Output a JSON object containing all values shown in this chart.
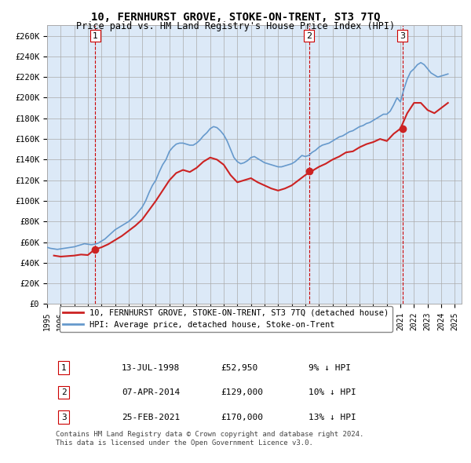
{
  "title": "10, FERNHURST GROVE, STOKE-ON-TRENT, ST3 7TQ",
  "subtitle": "Price paid vs. HM Land Registry's House Price Index (HPI)",
  "background_color": "#dce9f7",
  "plot_bg_color": "#dce9f7",
  "y_ticks": [
    0,
    20000,
    40000,
    60000,
    80000,
    100000,
    120000,
    140000,
    160000,
    180000,
    200000,
    220000,
    240000,
    260000
  ],
  "y_labels": [
    "£0",
    "£20K",
    "£40K",
    "£60K",
    "£80K",
    "£100K",
    "£120K",
    "£140K",
    "£160K",
    "£180K",
    "£200K",
    "£220K",
    "£240K",
    "£260K"
  ],
  "x_start_year": 1995,
  "x_end_year": 2025,
  "hpi_color": "#6699cc",
  "price_color": "#cc2222",
  "marker_color": "#cc2222",
  "vline_color": "#cc0000",
  "purchases": [
    {
      "label": "1",
      "year": 1998.54,
      "price": 52950
    },
    {
      "label": "2",
      "year": 2014.27,
      "price": 129000
    },
    {
      "label": "3",
      "year": 2021.15,
      "price": 170000
    }
  ],
  "legend_line1": "10, FERNHURST GROVE, STOKE-ON-TRENT, ST3 7TQ (detached house)",
  "legend_line2": "HPI: Average price, detached house, Stoke-on-Trent",
  "table_entries": [
    {
      "num": "1",
      "date": "13-JUL-1998",
      "price": "£52,950",
      "pct": "9% ↓ HPI"
    },
    {
      "num": "2",
      "date": "07-APR-2014",
      "price": "£129,000",
      "pct": "10% ↓ HPI"
    },
    {
      "num": "3",
      "date": "25-FEB-2021",
      "price": "£170,000",
      "pct": "13% ↓ HPI"
    }
  ],
  "footnote": "Contains HM Land Registry data © Crown copyright and database right 2024.\nThis data is licensed under the Open Government Licence v3.0.",
  "hpi_data_years": [
    1995.0,
    1995.25,
    1995.5,
    1995.75,
    1996.0,
    1996.25,
    1996.5,
    1996.75,
    1997.0,
    1997.25,
    1997.5,
    1997.75,
    1998.0,
    1998.25,
    1998.5,
    1998.75,
    1999.0,
    1999.25,
    1999.5,
    1999.75,
    2000.0,
    2000.25,
    2000.5,
    2000.75,
    2001.0,
    2001.25,
    2001.5,
    2001.75,
    2002.0,
    2002.25,
    2002.5,
    2002.75,
    2003.0,
    2003.25,
    2003.5,
    2003.75,
    2004.0,
    2004.25,
    2004.5,
    2004.75,
    2005.0,
    2005.25,
    2005.5,
    2005.75,
    2006.0,
    2006.25,
    2006.5,
    2006.75,
    2007.0,
    2007.25,
    2007.5,
    2007.75,
    2008.0,
    2008.25,
    2008.5,
    2008.75,
    2009.0,
    2009.25,
    2009.5,
    2009.75,
    2010.0,
    2010.25,
    2010.5,
    2010.75,
    2011.0,
    2011.25,
    2011.5,
    2011.75,
    2012.0,
    2012.25,
    2012.5,
    2012.75,
    2013.0,
    2013.25,
    2013.5,
    2013.75,
    2014.0,
    2014.25,
    2014.5,
    2014.75,
    2015.0,
    2015.25,
    2015.5,
    2015.75,
    2016.0,
    2016.25,
    2016.5,
    2016.75,
    2017.0,
    2017.25,
    2017.5,
    2017.75,
    2018.0,
    2018.25,
    2018.5,
    2018.75,
    2019.0,
    2019.25,
    2019.5,
    2019.75,
    2020.0,
    2020.25,
    2020.5,
    2020.75,
    2021.0,
    2021.25,
    2021.5,
    2021.75,
    2022.0,
    2022.25,
    2022.5,
    2022.75,
    2023.0,
    2023.25,
    2023.5,
    2023.75,
    2024.0,
    2024.25,
    2024.5
  ],
  "hpi_data_values": [
    55000,
    54000,
    53500,
    53000,
    53500,
    54000,
    54500,
    55000,
    55500,
    56500,
    57500,
    58500,
    58000,
    57500,
    58000,
    59000,
    61000,
    63000,
    66000,
    69000,
    72000,
    74000,
    76000,
    78000,
    80000,
    83000,
    86000,
    90000,
    94000,
    100000,
    108000,
    115000,
    120000,
    128000,
    135000,
    140000,
    148000,
    152000,
    155000,
    156000,
    156000,
    155000,
    154000,
    154000,
    156000,
    159000,
    163000,
    166000,
    170000,
    172000,
    171000,
    168000,
    164000,
    158000,
    150000,
    142000,
    138000,
    136000,
    137000,
    139000,
    142000,
    143000,
    141000,
    139000,
    137000,
    136000,
    135000,
    134000,
    133000,
    133000,
    134000,
    135000,
    136000,
    138000,
    141000,
    144000,
    143000,
    144000,
    147000,
    149000,
    152000,
    154000,
    155000,
    156000,
    158000,
    160000,
    162000,
    163000,
    165000,
    167000,
    168000,
    170000,
    172000,
    173000,
    175000,
    176000,
    178000,
    180000,
    182000,
    184000,
    184000,
    187000,
    193000,
    200000,
    196000,
    208000,
    218000,
    225000,
    228000,
    232000,
    234000,
    232000,
    228000,
    224000,
    222000,
    220000,
    221000,
    222000,
    223000
  ],
  "price_data_years": [
    1995.5,
    1996.0,
    1996.5,
    1997.0,
    1997.5,
    1998.0,
    1998.5,
    1999.0,
    1999.5,
    2000.0,
    2000.5,
    2001.0,
    2001.5,
    2002.0,
    2002.5,
    2003.0,
    2003.5,
    2004.0,
    2004.5,
    2005.0,
    2005.5,
    2006.0,
    2006.5,
    2007.0,
    2007.5,
    2008.0,
    2008.5,
    2009.0,
    2009.5,
    2010.0,
    2010.5,
    2011.0,
    2011.5,
    2012.0,
    2012.5,
    2013.0,
    2013.5,
    2014.0,
    2014.5,
    2015.0,
    2015.5,
    2016.0,
    2016.5,
    2017.0,
    2017.5,
    2018.0,
    2018.5,
    2019.0,
    2019.5,
    2020.0,
    2020.5,
    2021.0,
    2021.5,
    2022.0,
    2022.5,
    2023.0,
    2023.5,
    2024.0,
    2024.5
  ],
  "price_data_values": [
    47000,
    46000,
    46500,
    47000,
    48000,
    47500,
    53000,
    55000,
    58000,
    62000,
    66000,
    71000,
    76000,
    82000,
    91000,
    100000,
    110000,
    120000,
    127000,
    130000,
    128000,
    132000,
    138000,
    142000,
    140000,
    135000,
    125000,
    118000,
    120000,
    122000,
    118000,
    115000,
    112000,
    110000,
    112000,
    115000,
    120000,
    125000,
    129000,
    133000,
    136000,
    140000,
    143000,
    147000,
    148000,
    152000,
    155000,
    157000,
    160000,
    158000,
    165000,
    170000,
    185000,
    195000,
    195000,
    188000,
    185000,
    190000,
    195000
  ]
}
